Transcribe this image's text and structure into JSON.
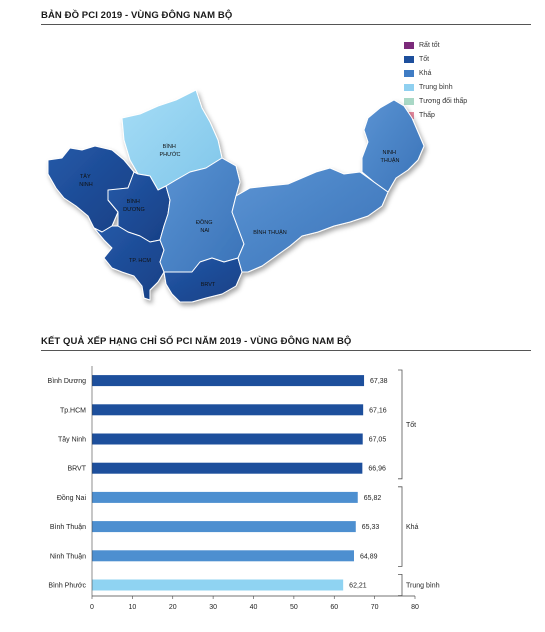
{
  "map_section": {
    "title": "BẢN ĐỒ PCI 2019 - VÙNG ĐÔNG NAM BỘ",
    "legend": [
      {
        "label": "Rất tốt",
        "color": "#7b2a7a"
      },
      {
        "label": "Tốt",
        "color": "#1d4f9c"
      },
      {
        "label": "Khá",
        "color": "#3f7cc4"
      },
      {
        "label": "Trung bình",
        "color": "#8fd0f0"
      },
      {
        "label": "Tương đối thấp",
        "color": "#a9d8c6"
      },
      {
        "label": "Thấp",
        "color": "#e88aa0"
      }
    ],
    "provinces": [
      {
        "id": "tay-ninh",
        "label_lines": [
          "TÂY",
          "NINH"
        ],
        "rating": "Tốt"
      },
      {
        "id": "binh-phuoc",
        "label_lines": [
          "BÌNH",
          "PHƯỚC"
        ],
        "rating": "Trung bình"
      },
      {
        "id": "binh-duong",
        "label_lines": [
          "BÌNH",
          "DƯƠNG"
        ],
        "rating": "Tốt"
      },
      {
        "id": "dong-nai",
        "label_lines": [
          "ĐỒNG",
          "NAI"
        ],
        "rating": "Khá"
      },
      {
        "id": "binh-thuan",
        "label_lines": [
          "BÌNH THUẬN"
        ],
        "rating": "Khá"
      },
      {
        "id": "ninh-thuan",
        "label_lines": [
          "NINH",
          "THUẬN"
        ],
        "rating": "Khá"
      },
      {
        "id": "tp-hcm",
        "label_lines": [
          "TP. HCM"
        ],
        "rating": "Tốt"
      },
      {
        "id": "brvt",
        "label_lines": [
          "BRVT"
        ],
        "rating": "Tốt"
      }
    ]
  },
  "chart_section": {
    "title": "KẾT QUẢ XẾP HẠNG CHỈ SỐ PCI NĂM 2019 - VÙNG ĐÔNG NAM BỘ"
  },
  "chart_data": {
    "type": "bar",
    "orientation": "horizontal",
    "categories": [
      "Bình Dương",
      "Tp.HCM",
      "Tây Ninh",
      "BRVT",
      "Đồng Nai",
      "Bình Thuận",
      "Ninh Thuận",
      "Bình Phước"
    ],
    "values": [
      67.38,
      67.16,
      67.05,
      66.96,
      65.82,
      65.33,
      64.89,
      62.21
    ],
    "value_labels": [
      "67,38",
      "67,16",
      "67,05",
      "66,96",
      "65,82",
      "65,33",
      "64,89",
      "62,21"
    ],
    "xlim": [
      0,
      80
    ],
    "xticks": [
      0,
      10,
      20,
      30,
      40,
      50,
      60,
      70,
      80
    ],
    "groups": [
      {
        "label": "Tốt",
        "first": 0,
        "last": 3,
        "color": "#1d4f9c"
      },
      {
        "label": "Khá",
        "first": 4,
        "last": 6,
        "color": "#4d8fd0"
      },
      {
        "label": "Trung bình",
        "first": 7,
        "last": 7,
        "color": "#8fd3f2"
      }
    ],
    "grid": false
  }
}
